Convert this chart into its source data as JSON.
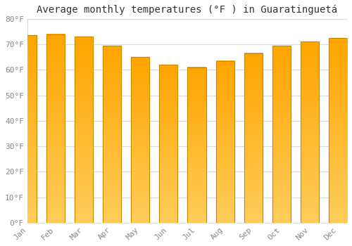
{
  "title": "Average monthly temperatures (°F ) in Guaratinguetá",
  "months": [
    "Jan",
    "Feb",
    "Mar",
    "Apr",
    "May",
    "Jun",
    "Jul",
    "Aug",
    "Sep",
    "Oct",
    "Nov",
    "Dec"
  ],
  "values": [
    73.5,
    74.0,
    73.0,
    69.5,
    65.0,
    62.0,
    61.0,
    63.5,
    66.5,
    69.5,
    71.0,
    72.5
  ],
  "bar_color": "#FFAA00",
  "bar_edge_color": "#CC8800",
  "background_color": "#FFFFFF",
  "grid_color": "#DDDDDD",
  "ylim": [
    0,
    80
  ],
  "yticks": [
    0,
    10,
    20,
    30,
    40,
    50,
    60,
    70,
    80
  ],
  "ytick_labels": [
    "0°F",
    "10°F",
    "20°F",
    "30°F",
    "40°F",
    "50°F",
    "60°F",
    "70°F",
    "80°F"
  ],
  "title_fontsize": 10,
  "tick_fontsize": 8,
  "tick_color": "#888888",
  "font_family": "monospace"
}
